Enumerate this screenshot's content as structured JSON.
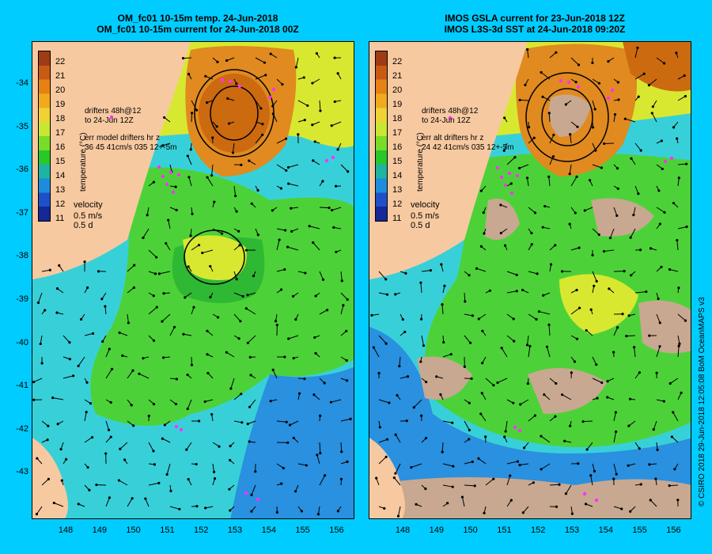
{
  "left_panel": {
    "title_line1": "OM_fc01 10-15m temp. 24-Jun-2018",
    "title_line2": "OM_fc01 10-15m current for 24-Jun-2018 00Z",
    "drifters_line1": "drifters 48h@12",
    "drifters_line2": "to 24-Jun 12Z",
    "err_line1": "err model drifters hr z",
    "err_line2": "36 45 41cm/s 035 12+-5m"
  },
  "right_panel": {
    "title_line1": "IMOS GSLA current for 23-Jun-2018 12Z",
    "title_line2": "IMOS L3S-3d SST at 24-Jun-2018 09:20Z",
    "drifters_line1": "drifters 48h@12",
    "drifters_line2": "to 24-Jun 12Z",
    "err_line1": "err alt drifters hr z",
    "err_line2": "24 42 41cm/s 035 12+-5m"
  },
  "legend": {
    "colorbar_title": "temperature (°C)",
    "colorbar_ticks": [
      "22",
      "21",
      "20",
      "19",
      "18",
      "17",
      "16",
      "15",
      "14",
      "13",
      "12",
      "11"
    ],
    "colors": [
      "#a03c14",
      "#c85a14",
      "#e68214",
      "#f0aa1e",
      "#f0d232",
      "#c8e632",
      "#78dc28",
      "#28c828",
      "#1eb4a0",
      "#1e8cdc",
      "#1e50c8",
      "#142896"
    ],
    "velocity_label": "velocity",
    "velocity_speed": "0.5 m/s",
    "velocity_time": "0.5 d"
  },
  "axes": {
    "y_ticks": [
      "-34",
      "-35",
      "-36",
      "-37",
      "-38",
      "-39",
      "-40",
      "-41",
      "-42",
      "-43"
    ],
    "x_ticks": [
      "148",
      "149",
      "150",
      "151",
      "152",
      "153",
      "154",
      "155",
      "156"
    ]
  },
  "credit": "© CSIRO 2018   29-Jun-2018 12:05:08 BoM OceanMAPS v3",
  "map_colors": {
    "land": "#f7c9a0",
    "warm_eddy": "#e08a20",
    "warm_core": "#cc6a10",
    "yellow": "#d8e830",
    "green": "#4cd238",
    "green_dark": "#2eb834",
    "cyan": "#38d0d8",
    "blue": "#2a90e0",
    "cloud": "#c8a890",
    "drifter": "#ff30ff"
  }
}
